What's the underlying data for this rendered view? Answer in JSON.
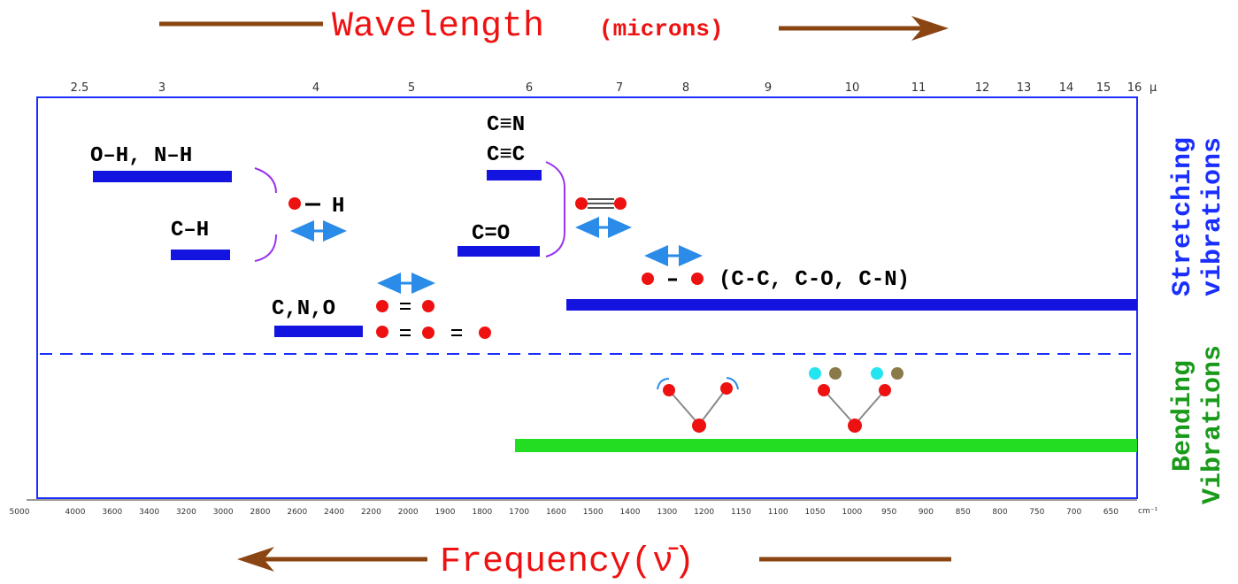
{
  "title": {
    "wavelength": "Wavelength",
    "unit": "(microns)"
  },
  "wavelength_axis": {
    "ticks": [
      "2.5",
      "3",
      "4",
      "5",
      "6",
      "7",
      "8",
      "9",
      "10",
      "11",
      "12",
      "13",
      "14",
      "15",
      "16"
    ],
    "unit": "μ"
  },
  "frequency_axis": {
    "ticks": [
      "5000",
      "4000",
      "3600",
      "3400",
      "3200",
      "3000",
      "2800",
      "2600",
      "2400",
      "2200",
      "2000",
      "1900",
      "1800",
      "1700",
      "1600",
      "1500",
      "1400",
      "1300",
      "1200",
      "1150",
      "1100",
      "1050",
      "1000",
      "950",
      "900",
      "850",
      "800",
      "750",
      "700",
      "650"
    ],
    "unit": "cm⁻¹",
    "label": "Frequency(ν̄)"
  },
  "bands": {
    "oh_nh": "O–H, N–H",
    "ch": "C–H",
    "cn_triple": "C≡N",
    "cc_triple": "C≡C",
    "co_double": "C=O",
    "cno": "C,N,O",
    "single": "(C-C, C-O, C-N)",
    "hydrogen": "H"
  },
  "side_labels": {
    "stretching": [
      "Stretching",
      "vibrations"
    ],
    "bending": [
      "Bending",
      "Vibrations"
    ]
  }
}
